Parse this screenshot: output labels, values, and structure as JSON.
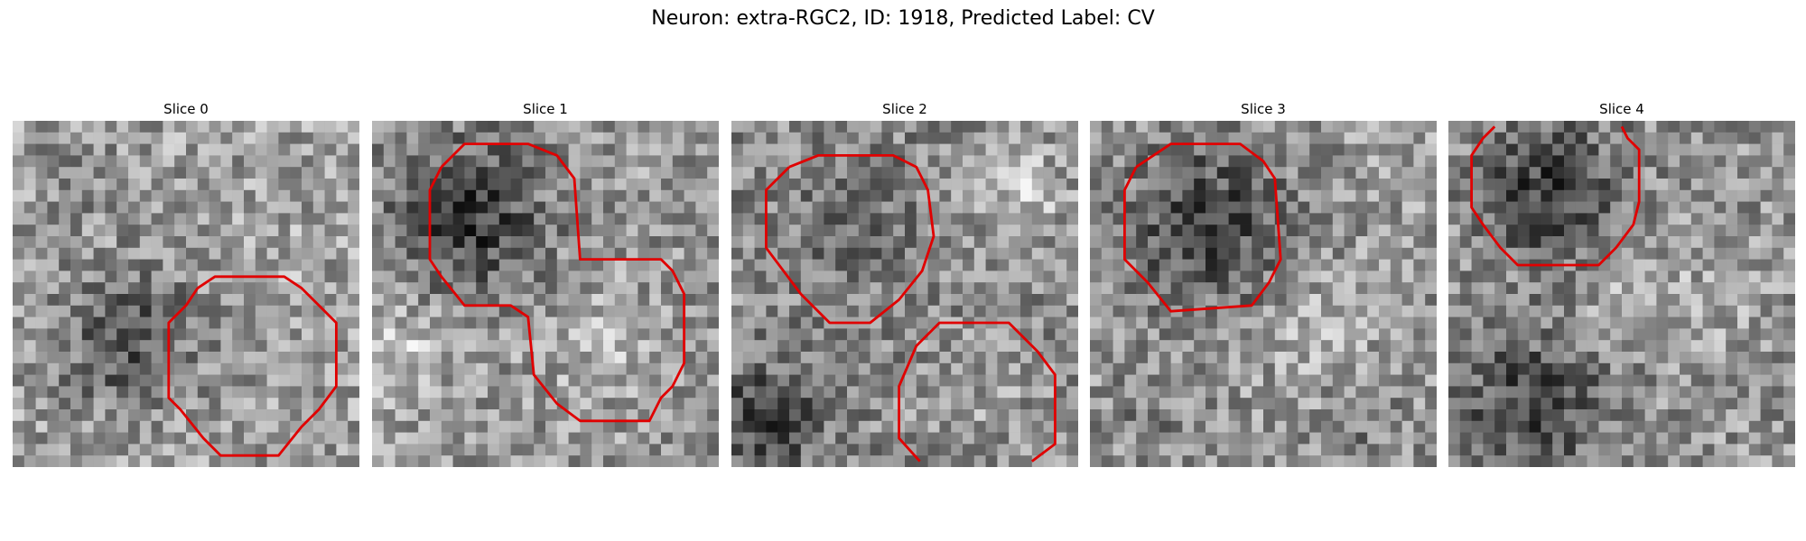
{
  "figure": {
    "title": "Neuron: extra-RGC2, ID: 1918, Predicted Label: CV"
  },
  "panels": [
    {
      "title": "Slice 0"
    },
    {
      "title": "Slice 1"
    },
    {
      "title": "Slice 2"
    },
    {
      "title": "Slice 3"
    },
    {
      "title": "Slice 4"
    }
  ],
  "colors": {
    "contour": "#e00000",
    "background": "#ffffff"
  }
}
